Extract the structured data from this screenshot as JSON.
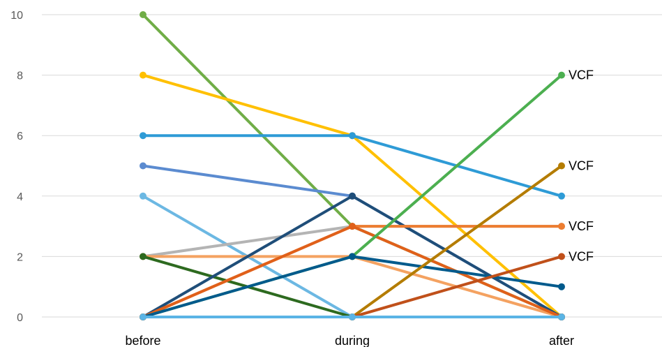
{
  "chart_data": {
    "type": "line",
    "title": "",
    "xlabel": "",
    "ylabel": "",
    "categories": [
      "before",
      "during",
      "after"
    ],
    "ylim": [
      0,
      10
    ],
    "yticks": [
      0,
      2,
      4,
      6,
      8,
      10
    ],
    "grid": "horizontal",
    "legend": "none",
    "series": [
      {
        "color": "#70ad47",
        "values": [
          10,
          3,
          0
        ]
      },
      {
        "color": "#ffc000",
        "values": [
          8,
          6,
          0
        ]
      },
      {
        "color": "#2e9bd6",
        "values": [
          6,
          6,
          4
        ]
      },
      {
        "color": "#5b8bd0",
        "values": [
          5,
          4,
          0
        ]
      },
      {
        "color": "#6cb8e3",
        "values": [
          4,
          0,
          0
        ]
      },
      {
        "color": "#b4b4b4",
        "values": [
          2,
          3,
          3
        ]
      },
      {
        "color": "#f4a261",
        "values": [
          2,
          2,
          0
        ]
      },
      {
        "color": "#2d6a1f",
        "values": [
          2,
          0,
          0
        ]
      },
      {
        "color": "#1f4e79",
        "values": [
          0,
          4,
          0
        ]
      },
      {
        "color": "#ed7d31",
        "values": [
          0,
          3,
          3
        ]
      },
      {
        "color": "#e0601a",
        "values": [
          0,
          3,
          0
        ]
      },
      {
        "color": "#4caf50",
        "values": [
          0,
          2,
          8
        ]
      },
      {
        "color": "#005a8c",
        "values": [
          0,
          2,
          1
        ]
      },
      {
        "color": "#b47c00",
        "values": [
          0,
          0,
          5
        ]
      },
      {
        "color": "#c0501a",
        "values": [
          0,
          0,
          2
        ]
      },
      {
        "color": "#5ab4e5",
        "values": [
          0,
          0,
          0
        ]
      }
    ],
    "annotations": [
      {
        "text": "VCF",
        "category": "after",
        "y": 8
      },
      {
        "text": "VCF",
        "category": "after",
        "y": 5
      },
      {
        "text": "VCF",
        "category": "after",
        "y": 3
      },
      {
        "text": "VCF",
        "category": "after",
        "y": 2
      }
    ]
  }
}
